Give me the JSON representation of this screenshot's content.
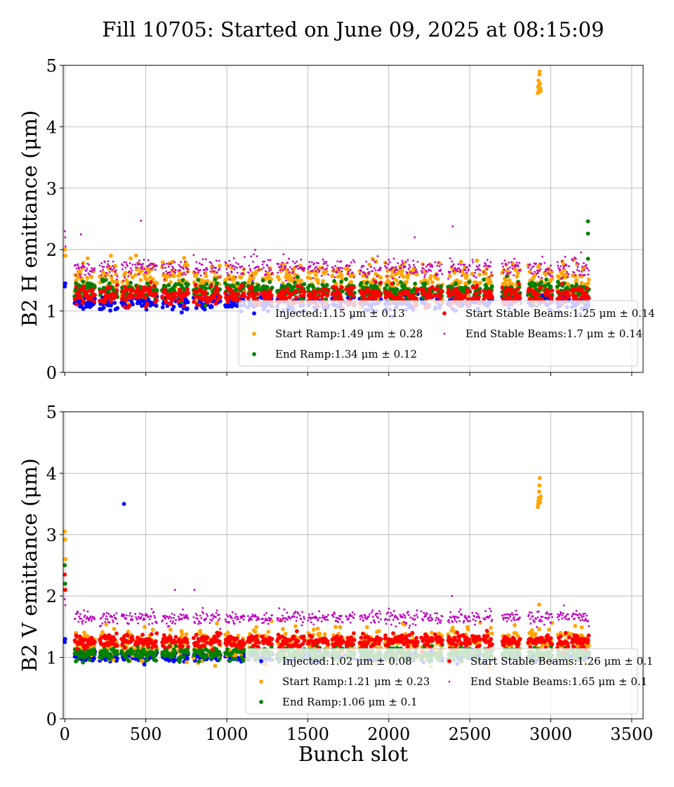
{
  "figure": {
    "title": "Fill 10705: Started on June 09, 2025 at 08:15:09",
    "xlabel": "Bunch slot"
  },
  "chart_data": [
    {
      "type": "scatter",
      "ylabel": "B2 H emittance (μm)",
      "xlim": [
        -10,
        3570
      ],
      "ylim": [
        0,
        5
      ],
      "xticks": [
        "0",
        "500",
        "1000",
        "1500",
        "2000",
        "2500",
        "3000",
        "3500"
      ],
      "yticks": [
        "0",
        "1",
        "2",
        "3",
        "4",
        "5"
      ],
      "show_x_tick_labels": false,
      "grid": true,
      "legend_position": "lower-right",
      "series": [
        {
          "name": "Injected",
          "label": "Injected:1.15 μm ± 0.13",
          "color": "#0000ff",
          "mean": 1.15,
          "std": 0.13,
          "marker": "dot-large"
        },
        {
          "name": "Start Ramp",
          "label": "Start Ramp:1.49 μm ± 0.28",
          "color": "#ffa500",
          "mean": 1.49,
          "std": 0.28,
          "marker": "dot-large"
        },
        {
          "name": "End Ramp",
          "label": "End Ramp:1.34 μm ± 0.12",
          "color": "#008000",
          "mean": 1.34,
          "std": 0.12,
          "marker": "dot-large"
        },
        {
          "name": "Start Stable Beams",
          "label": "Start Stable Beams:1.25 μm ± 0.14",
          "color": "#ff0000",
          "mean": 1.25,
          "std": 0.14,
          "marker": "dot-large"
        },
        {
          "name": "End Stable Beams",
          "label": "End Stable Beams:1.7 μm ± 0.14",
          "color": "#bf00bf",
          "mean": 1.7,
          "std": 0.14,
          "marker": "dot-small"
        }
      ],
      "bunch_trains": [
        [
          60,
          185
        ],
        [
          215,
          325
        ],
        [
          350,
          420
        ],
        [
          435,
          570
        ],
        [
          600,
          685
        ],
        [
          700,
          760
        ],
        [
          795,
          880
        ],
        [
          895,
          960
        ],
        [
          990,
          1070
        ],
        [
          1080,
          1110
        ],
        [
          1130,
          1200
        ],
        [
          1215,
          1280
        ],
        [
          1310,
          1390
        ],
        [
          1400,
          1440
        ],
        [
          1450,
          1480
        ],
        [
          1500,
          1575
        ],
        [
          1585,
          1625
        ],
        [
          1650,
          1715
        ],
        [
          1735,
          1790
        ],
        [
          1820,
          1880
        ],
        [
          1890,
          1950
        ],
        [
          1975,
          2055
        ],
        [
          2065,
          2135
        ],
        [
          2145,
          2180
        ],
        [
          2200,
          2270
        ],
        [
          2285,
          2330
        ],
        [
          2365,
          2450
        ],
        [
          2460,
          2500
        ],
        [
          2515,
          2565
        ],
        [
          2585,
          2640
        ],
        [
          2700,
          2760
        ],
        [
          2765,
          2810
        ],
        [
          2860,
          2950
        ],
        [
          2960,
          3010
        ],
        [
          3040,
          3115
        ],
        [
          3130,
          3235
        ]
      ],
      "outliers": [
        {
          "series": "Start Ramp",
          "points": [
            [
              2920,
              4.55
            ],
            [
              2922,
              4.65
            ],
            [
              2924,
              4.75
            ],
            [
              2926,
              4.6
            ],
            [
              2928,
              4.68
            ],
            [
              2930,
              4.85
            ],
            [
              2932,
              4.9
            ],
            [
              2934,
              4.7
            ],
            [
              2936,
              4.62
            ],
            [
              2938,
              4.58
            ]
          ]
        },
        {
          "series": "End Ramp",
          "points": [
            [
              3230,
              2.46
            ],
            [
              3230,
              2.26
            ],
            [
              3230,
              1.85
            ]
          ]
        },
        {
          "series": "End Stable Beams",
          "points": [
            [
              0,
              2.3
            ],
            [
              2,
              2.2
            ],
            [
              4,
              2.05
            ],
            [
              470,
              2.47
            ],
            [
              100,
              2.25
            ],
            [
              2395,
              2.38
            ],
            [
              2160,
              2.2
            ]
          ]
        },
        {
          "series": "Start Ramp",
          "points": [
            [
              0,
              2.0
            ],
            [
              3,
              1.9
            ]
          ]
        },
        {
          "series": "Injected",
          "points": [
            [
              0,
              1.4
            ],
            [
              3,
              1.45
            ]
          ]
        }
      ]
    },
    {
      "type": "scatter",
      "ylabel": "B2 V emittance (μm)",
      "xlim": [
        -10,
        3570
      ],
      "ylim": [
        0,
        5
      ],
      "xticks": [
        "0",
        "500",
        "1000",
        "1500",
        "2000",
        "2500",
        "3000",
        "3500"
      ],
      "yticks": [
        "0",
        "1",
        "2",
        "3",
        "4",
        "5"
      ],
      "show_x_tick_labels": true,
      "grid": true,
      "legend_position": "lower-right",
      "series": [
        {
          "name": "Injected",
          "label": "Injected:1.02 μm ± 0.08",
          "color": "#0000ff",
          "mean": 1.02,
          "std": 0.08,
          "marker": "dot-large"
        },
        {
          "name": "Start Ramp",
          "label": "Start Ramp:1.21 μm ± 0.23",
          "color": "#ffa500",
          "mean": 1.21,
          "std": 0.23,
          "marker": "dot-large"
        },
        {
          "name": "End Ramp",
          "label": "End Ramp:1.06 μm ± 0.1",
          "color": "#008000",
          "mean": 1.06,
          "std": 0.1,
          "marker": "dot-large"
        },
        {
          "name": "Start Stable Beams",
          "label": "Start Stable Beams:1.26 μm ± 0.1",
          "color": "#ff0000",
          "mean": 1.26,
          "std": 0.1,
          "marker": "dot-large"
        },
        {
          "name": "End Stable Beams",
          "label": "End Stable Beams:1.65 μm ± 0.1",
          "color": "#bf00bf",
          "mean": 1.65,
          "std": 0.1,
          "marker": "dot-small"
        }
      ],
      "bunch_trains": [
        [
          60,
          185
        ],
        [
          215,
          325
        ],
        [
          350,
          420
        ],
        [
          435,
          570
        ],
        [
          600,
          685
        ],
        [
          700,
          760
        ],
        [
          795,
          880
        ],
        [
          895,
          960
        ],
        [
          990,
          1070
        ],
        [
          1080,
          1110
        ],
        [
          1130,
          1200
        ],
        [
          1215,
          1280
        ],
        [
          1310,
          1390
        ],
        [
          1400,
          1440
        ],
        [
          1450,
          1480
        ],
        [
          1500,
          1575
        ],
        [
          1585,
          1625
        ],
        [
          1650,
          1715
        ],
        [
          1735,
          1790
        ],
        [
          1820,
          1880
        ],
        [
          1890,
          1950
        ],
        [
          1975,
          2055
        ],
        [
          2065,
          2135
        ],
        [
          2145,
          2180
        ],
        [
          2200,
          2270
        ],
        [
          2285,
          2330
        ],
        [
          2365,
          2450
        ],
        [
          2460,
          2500
        ],
        [
          2515,
          2565
        ],
        [
          2585,
          2640
        ],
        [
          2700,
          2760
        ],
        [
          2765,
          2810
        ],
        [
          2860,
          2950
        ],
        [
          2960,
          3010
        ],
        [
          3040,
          3115
        ],
        [
          3130,
          3235
        ]
      ],
      "outliers": [
        {
          "series": "Injected",
          "points": [
            [
              365,
              3.5
            ],
            [
              0,
              1.25
            ],
            [
              2,
              1.3
            ]
          ]
        },
        {
          "series": "Start Ramp",
          "points": [
            [
              0,
              3.05
            ],
            [
              2,
              2.92
            ],
            [
              4,
              2.6
            ],
            [
              2920,
              3.45
            ],
            [
              2922,
              3.5
            ],
            [
              2924,
              3.55
            ],
            [
              2926,
              3.6
            ],
            [
              2928,
              3.7
            ],
            [
              2930,
              3.8
            ],
            [
              2932,
              3.92
            ],
            [
              2934,
              3.52
            ],
            [
              2936,
              3.58
            ],
            [
              2938,
              3.62
            ],
            [
              2928,
              1.86
            ]
          ]
        },
        {
          "series": "End Ramp",
          "points": [
            [
              0,
              2.5
            ],
            [
              2,
              2.2
            ]
          ]
        },
        {
          "series": "Start Stable Beams",
          "points": [
            [
              0,
              2.35
            ],
            [
              3,
              2.1
            ]
          ]
        },
        {
          "series": "End Stable Beams",
          "points": [
            [
              0,
              1.95
            ],
            [
              3,
              1.85
            ],
            [
              2390,
              2.0
            ],
            [
              680,
              2.1
            ],
            [
              800,
              2.1
            ]
          ]
        }
      ]
    }
  ]
}
